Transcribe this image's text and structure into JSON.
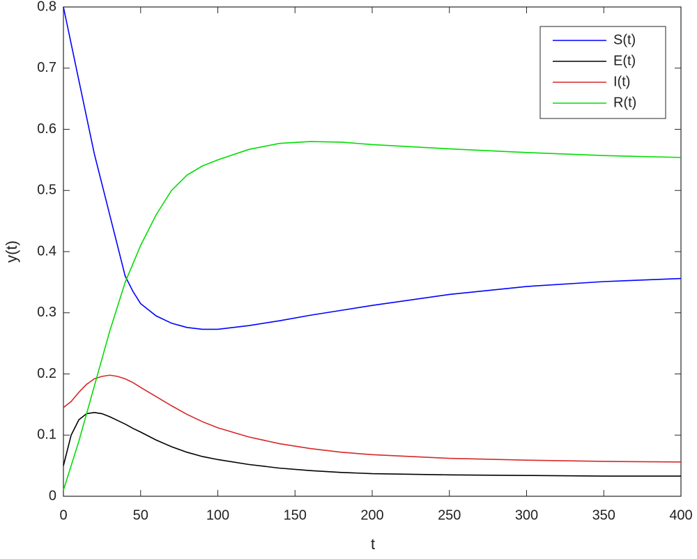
{
  "chart_data": {
    "type": "line",
    "x_label": "t",
    "y_label": "y(t)",
    "x": [
      0,
      5,
      10,
      15,
      20,
      25,
      30,
      35,
      40,
      45,
      50,
      60,
      70,
      80,
      90,
      100,
      120,
      140,
      160,
      180,
      200,
      250,
      300,
      350,
      400
    ],
    "series": [
      {
        "name": "S(t)",
        "color": "#0000ff",
        "values": [
          0.8,
          0.74,
          0.68,
          0.62,
          0.56,
          0.51,
          0.46,
          0.41,
          0.36,
          0.335,
          0.315,
          0.295,
          0.283,
          0.276,
          0.273,
          0.273,
          0.279,
          0.287,
          0.296,
          0.304,
          0.312,
          0.33,
          0.343,
          0.351,
          0.356
        ]
      },
      {
        "name": "E(t)",
        "color": "#000000",
        "values": [
          0.05,
          0.1,
          0.125,
          0.135,
          0.137,
          0.135,
          0.13,
          0.124,
          0.118,
          0.111,
          0.105,
          0.092,
          0.081,
          0.072,
          0.065,
          0.06,
          0.052,
          0.046,
          0.042,
          0.039,
          0.037,
          0.035,
          0.034,
          0.033,
          0.033
        ]
      },
      {
        "name": "I(t)",
        "color": "#d62728",
        "values": [
          0.145,
          0.155,
          0.17,
          0.183,
          0.192,
          0.196,
          0.198,
          0.196,
          0.192,
          0.186,
          0.178,
          0.163,
          0.148,
          0.134,
          0.122,
          0.112,
          0.097,
          0.086,
          0.078,
          0.072,
          0.068,
          0.062,
          0.059,
          0.057,
          0.056
        ]
      },
      {
        "name": "R(t)",
        "color": "#00dd00",
        "values": [
          0.01,
          0.05,
          0.09,
          0.135,
          0.18,
          0.225,
          0.27,
          0.31,
          0.35,
          0.38,
          0.41,
          0.46,
          0.5,
          0.525,
          0.54,
          0.55,
          0.567,
          0.577,
          0.58,
          0.579,
          0.575,
          0.568,
          0.562,
          0.557,
          0.554
        ]
      }
    ],
    "xlim": [
      0,
      400
    ],
    "xticks": [
      0,
      50,
      100,
      150,
      200,
      250,
      300,
      350,
      400
    ],
    "ylim": [
      0,
      0.8
    ],
    "yticks": [
      0,
      0.1,
      0.2,
      0.3,
      0.4,
      0.5,
      0.6,
      0.7,
      0.8
    ],
    "grid": false,
    "legend": "top-right"
  }
}
